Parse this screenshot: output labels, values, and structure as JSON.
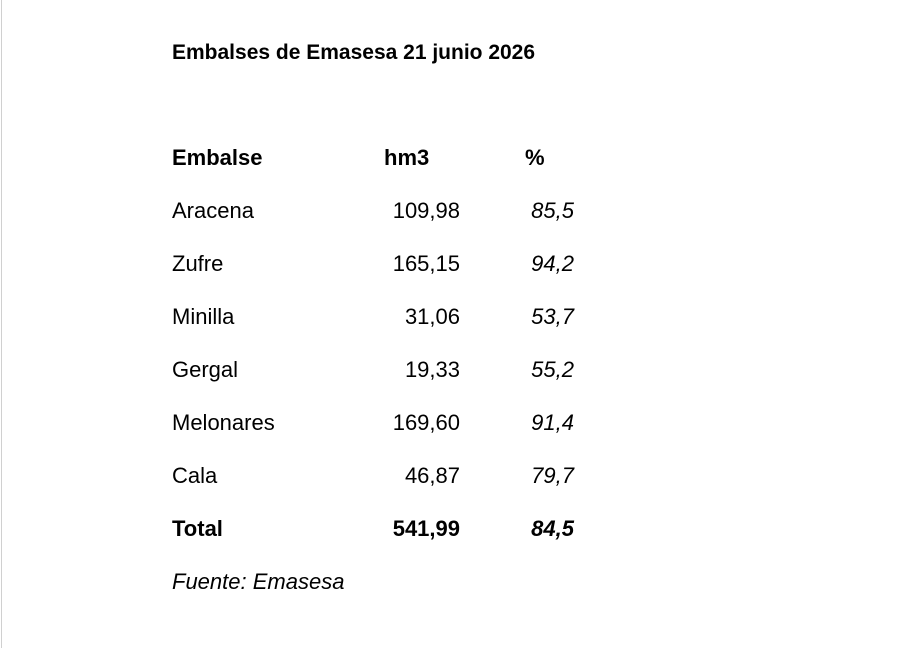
{
  "header": {
    "title": "Embalses de Emasesa 21 junio 2026"
  },
  "table": {
    "columns": [
      "Embalse",
      "hm3",
      "%"
    ],
    "rows": [
      [
        "Aracena",
        "109,98",
        "85,5"
      ],
      [
        "Zufre",
        "165,15",
        "94,2"
      ],
      [
        "Minilla",
        "31,06",
        "53,7"
      ],
      [
        "Gergal",
        "19,33",
        "55,2"
      ],
      [
        "Melonares",
        "169,60",
        "91,4"
      ],
      [
        "Cala",
        "46,87",
        "79,7"
      ]
    ],
    "total": [
      "Total",
      "541,99",
      "84,5"
    ]
  },
  "footer": {
    "source": "Fuente: Emasesa"
  }
}
